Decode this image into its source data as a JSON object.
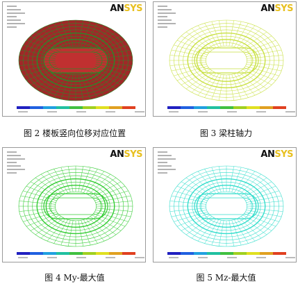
{
  "figures": [
    {
      "caption": "图 2   楼板竖向位移对应位置",
      "logo": [
        "AN",
        "SYS"
      ]
    },
    {
      "caption": "图 3  梁柱轴力",
      "logo": [
        "AN",
        "SYS"
      ]
    },
    {
      "caption": "图 4    My-最大值",
      "logo": [
        "AN",
        "SYS"
      ]
    },
    {
      "caption": "图 5    Mz-最大值",
      "logo": [
        "AN",
        "SYS"
      ]
    }
  ]
}
